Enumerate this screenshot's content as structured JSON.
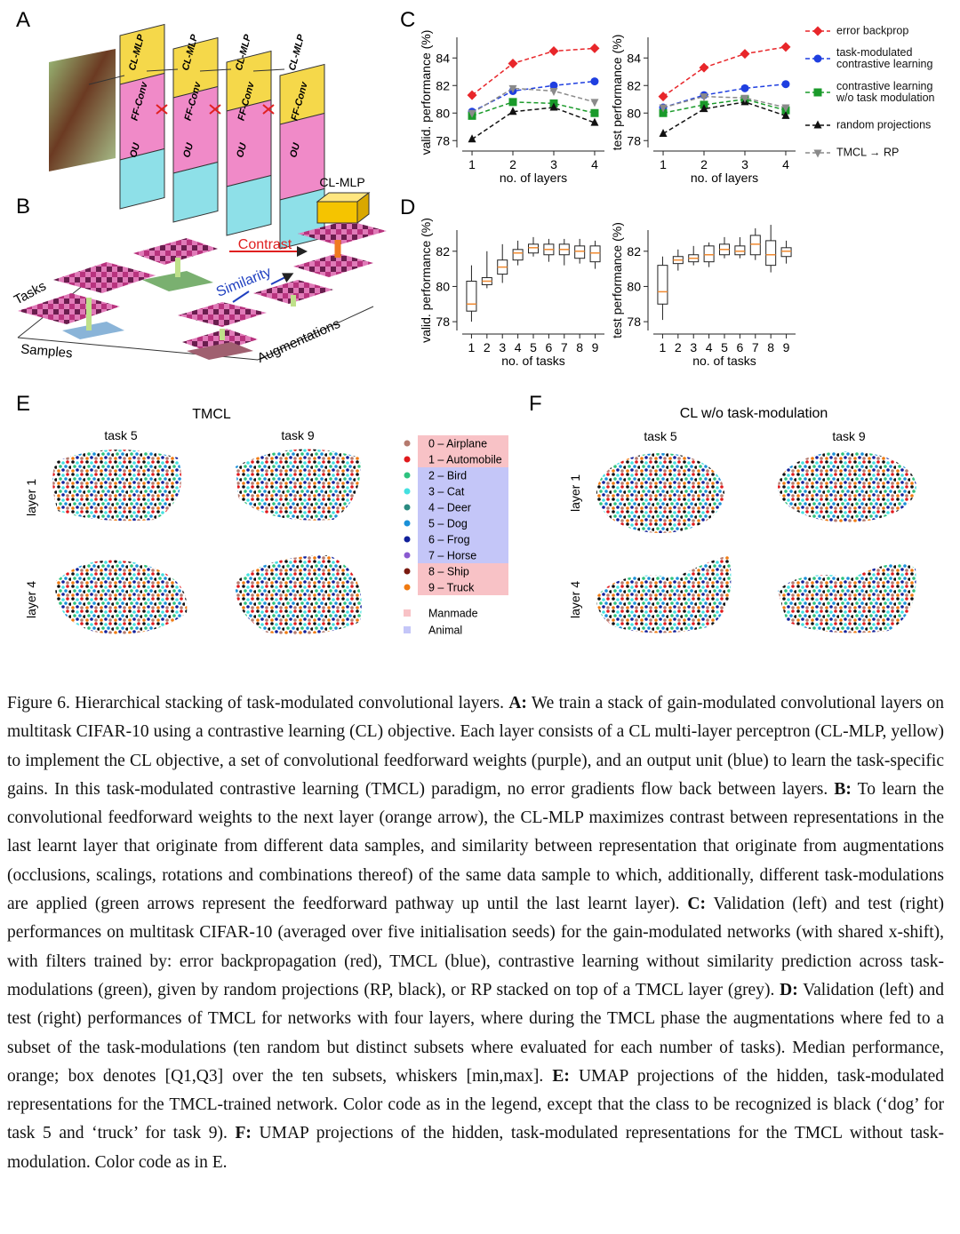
{
  "panel_labels": {
    "A": "A",
    "B": "B",
    "C": "C",
    "D": "D",
    "E": "E",
    "F": "F"
  },
  "diagram_a": {
    "cl_mlp": "CL-MLP",
    "ff_conv": "FF-Conv",
    "ou": "OU"
  },
  "diagram_b": {
    "cl_mlp": "CL-MLP",
    "contrast": "Contrast",
    "similarity": "Similarity",
    "tasks": "Tasks",
    "samples": "Samples",
    "augmentations": "Augmentations"
  },
  "chart_data": [
    {
      "type": "line",
      "y_label": "valid. performance (%)",
      "x_label": "no. of layers",
      "x": [
        1,
        2,
        3,
        4
      ],
      "xlim": [
        0.76,
        4.24
      ],
      "ylim": [
        77.5,
        85.5
      ],
      "xticks": [
        1,
        2,
        3,
        4
      ],
      "yticks": [
        78,
        80,
        82,
        84
      ],
      "series": [
        {
          "name": "error backprop",
          "color": "#e8262a",
          "marker": "diamond",
          "values": [
            81.3,
            83.6,
            84.5,
            84.7
          ]
        },
        {
          "name": "task-modulated contrastive learning",
          "color": "#1f3fe0",
          "marker": "circle",
          "values": [
            80.1,
            81.6,
            82.0,
            82.3
          ]
        },
        {
          "name": "contrastive learning w/o task modulation",
          "color": "#1a9a2a",
          "marker": "square",
          "values": [
            79.8,
            80.8,
            80.7,
            80.0
          ]
        },
        {
          "name": "random projections",
          "color": "#111111",
          "marker": "triangle",
          "values": [
            78.1,
            80.1,
            80.4,
            79.3
          ]
        },
        {
          "name": "TMCL → RP",
          "color": "#8a8a8a",
          "marker": "triangle-down",
          "values": [
            80.0,
            81.8,
            81.6,
            80.8
          ]
        }
      ]
    },
    {
      "type": "line",
      "y_label": "test performance (%)",
      "x_label": "no. of layers",
      "x": [
        1,
        2,
        3,
        4
      ],
      "xlim": [
        0.76,
        4.24
      ],
      "ylim": [
        77.5,
        85.5
      ],
      "xticks": [
        1,
        2,
        3,
        4
      ],
      "yticks": [
        78,
        80,
        82,
        84
      ],
      "series": [
        {
          "color": "#e8262a",
          "marker": "diamond",
          "values": [
            81.2,
            83.3,
            84.3,
            84.8
          ]
        },
        {
          "color": "#1f3fe0",
          "marker": "circle",
          "values": [
            80.4,
            81.3,
            81.8,
            82.1
          ]
        },
        {
          "color": "#1a9a2a",
          "marker": "square",
          "values": [
            80.0,
            80.6,
            81.0,
            80.2
          ]
        },
        {
          "color": "#111111",
          "marker": "triangle",
          "values": [
            78.5,
            80.3,
            80.8,
            79.8
          ]
        },
        {
          "color": "#8a8a8a",
          "marker": "triangle-down",
          "values": [
            80.4,
            81.2,
            81.1,
            80.4
          ]
        }
      ]
    },
    {
      "type": "box",
      "y_label": "valid. performance (%)",
      "x_label": "no. of tasks",
      "x": [
        1,
        2,
        3,
        4,
        5,
        6,
        7,
        8,
        9
      ],
      "xlim": [
        0.4,
        9.6
      ],
      "ylim": [
        77.5,
        83.2
      ],
      "xticks": [
        1,
        2,
        3,
        4,
        5,
        6,
        7,
        8,
        9
      ],
      "yticks": [
        78,
        80,
        82
      ],
      "median_color": "#f08a30",
      "boxes": [
        {
          "min": 78.0,
          "q1": 78.6,
          "median": 79.0,
          "q3": 80.3,
          "max": 81.2
        },
        {
          "min": 79.9,
          "q1": 80.1,
          "median": 80.3,
          "q3": 80.5,
          "max": 82.0
        },
        {
          "min": 80.2,
          "q1": 80.7,
          "median": 81.1,
          "q3": 81.5,
          "max": 82.4
        },
        {
          "min": 81.2,
          "q1": 81.5,
          "median": 81.9,
          "q3": 82.1,
          "max": 82.6
        },
        {
          "min": 81.7,
          "q1": 81.9,
          "median": 82.2,
          "q3": 82.4,
          "max": 82.8
        },
        {
          "min": 81.4,
          "q1": 81.8,
          "median": 82.1,
          "q3": 82.4,
          "max": 82.7
        },
        {
          "min": 81.2,
          "q1": 81.8,
          "median": 82.1,
          "q3": 82.4,
          "max": 82.7
        },
        {
          "min": 81.3,
          "q1": 81.6,
          "median": 82.0,
          "q3": 82.3,
          "max": 82.7
        },
        {
          "min": 81.0,
          "q1": 81.4,
          "median": 81.9,
          "q3": 82.3,
          "max": 82.6
        }
      ]
    },
    {
      "type": "box",
      "y_label": "test performance (%)",
      "x_label": "no. of tasks",
      "x": [
        1,
        2,
        3,
        4,
        5,
        6,
        7,
        8,
        9
      ],
      "xlim": [
        0.4,
        9.6
      ],
      "ylim": [
        77.5,
        83.2
      ],
      "xticks": [
        1,
        2,
        3,
        4,
        5,
        6,
        7,
        8,
        9
      ],
      "yticks": [
        78,
        80,
        82
      ],
      "median_color": "#f08a30",
      "boxes": [
        {
          "min": 78.1,
          "q1": 79.0,
          "median": 79.7,
          "q3": 81.2,
          "max": 81.7
        },
        {
          "min": 80.9,
          "q1": 81.3,
          "median": 81.5,
          "q3": 81.7,
          "max": 82.1
        },
        {
          "min": 81.2,
          "q1": 81.4,
          "median": 81.6,
          "q3": 81.8,
          "max": 82.3
        },
        {
          "min": 81.1,
          "q1": 81.4,
          "median": 81.8,
          "q3": 82.3,
          "max": 82.5
        },
        {
          "min": 81.6,
          "q1": 81.8,
          "median": 82.1,
          "q3": 82.4,
          "max": 82.8
        },
        {
          "min": 81.6,
          "q1": 81.8,
          "median": 82.0,
          "q3": 82.3,
          "max": 82.8
        },
        {
          "min": 81.5,
          "q1": 81.8,
          "median": 82.4,
          "q3": 82.9,
          "max": 83.3
        },
        {
          "min": 80.8,
          "q1": 81.2,
          "median": 81.8,
          "q3": 82.6,
          "max": 83.5
        },
        {
          "min": 81.3,
          "q1": 81.7,
          "median": 82.0,
          "q3": 82.2,
          "max": 82.6
        }
      ]
    }
  ],
  "umap_e": {
    "title": "TMCL",
    "task_5": "task 5",
    "task_9": "task 9",
    "layer_1": "layer 1",
    "layer_4": "layer 4"
  },
  "umap_f": {
    "title": "CL w/o task-modulation",
    "task_5": "task 5",
    "task_9": "task 9",
    "layer_1": "layer 1",
    "layer_4": "layer 4"
  },
  "umap_legend": {
    "classes": [
      {
        "label": "0 – Airplane",
        "color": "#b57a6e",
        "group": "Manmade"
      },
      {
        "label": "1 – Automobile",
        "color": "#e0191c",
        "group": "Manmade"
      },
      {
        "label": "2 – Bird",
        "color": "#2ec27e",
        "group": "Animal"
      },
      {
        "label": "3 – Cat",
        "color": "#44e0e0",
        "group": "Animal"
      },
      {
        "label": "4 – Deer",
        "color": "#2a8a80",
        "group": "Animal"
      },
      {
        "label": "5 – Dog",
        "color": "#1a90d8",
        "group": "Animal"
      },
      {
        "label": "6 – Frog",
        "color": "#10209a",
        "group": "Animal"
      },
      {
        "label": "7 – Horse",
        "color": "#8a5ad0",
        "group": "Animal"
      },
      {
        "label": "8 – Ship",
        "color": "#7a1a10",
        "group": "Manmade"
      },
      {
        "label": "9 – Truck",
        "color": "#f07a10",
        "group": "Manmade"
      }
    ],
    "groups": [
      {
        "label": "Manmade",
        "color": "#f8c2c6"
      },
      {
        "label": "Animal",
        "color": "#c4c6f8"
      }
    ]
  },
  "caption": {
    "label": "Figure 6.",
    "title": "Hierarchical stacking of task-modulated convolutional layers.",
    "parts": [
      {
        "label": "A:",
        "text": "We train a stack of gain-modulated convolutional layers on multitask CIFAR-10 using a contrastive learning (CL) objective. Each layer consists of a CL multi-layer perceptron (CL-MLP, yellow) to implement the CL objective, a set of convolutional feedforward weights (purple), and an output unit (blue) to learn the task-specific gains. In this task-modulated contrastive learning (TMCL) paradigm, no error gradients flow back between layers."
      },
      {
        "label": "B:",
        "text": "To learn the convolutional feedforward weights to the next layer (orange arrow), the CL-MLP maximizes contrast between representations in the last learnt layer that originate from different data samples, and similarity between representation that originate from augmentations (occlusions, scalings, rotations and combinations thereof) of the same data sample to which, additionally, different task-modulations are applied (green arrows represent the feedforward pathway up until the last learnt layer)."
      },
      {
        "label": "C:",
        "text": "Validation (left) and test (right) performances on multitask CIFAR-10 (averaged over five initialisation seeds) for the gain-modulated networks (with shared x-shift), with filters trained by: error backpropagation (red), TMCL (blue), contrastive learning without similarity prediction across task-modulations (green), given by random projections (RP, black), or RP stacked on top of a TMCL layer (grey)."
      },
      {
        "label": "D:",
        "text": "Validation (left) and test (right) performances of TMCL for networks with four layers, where during the TMCL phase the augmentations where fed to a subset of the task-modulations (ten random but distinct subsets where evaluated for each number of tasks). Median performance, orange; box denotes [Q1,Q3] over the ten subsets, whiskers [min,max]."
      },
      {
        "label": "E:",
        "text": "UMAP projections of the hidden, task-modulated representations for the TMCL-trained network. Color code as in the legend, except that the class to be recognized is black (‘dog’ for task 5 and ‘truck’ for task 9)."
      },
      {
        "label": "F:",
        "text": "UMAP projections of the hidden, task-modulated representations for the TMCL without task-modulation. Color code as in E."
      }
    ]
  }
}
